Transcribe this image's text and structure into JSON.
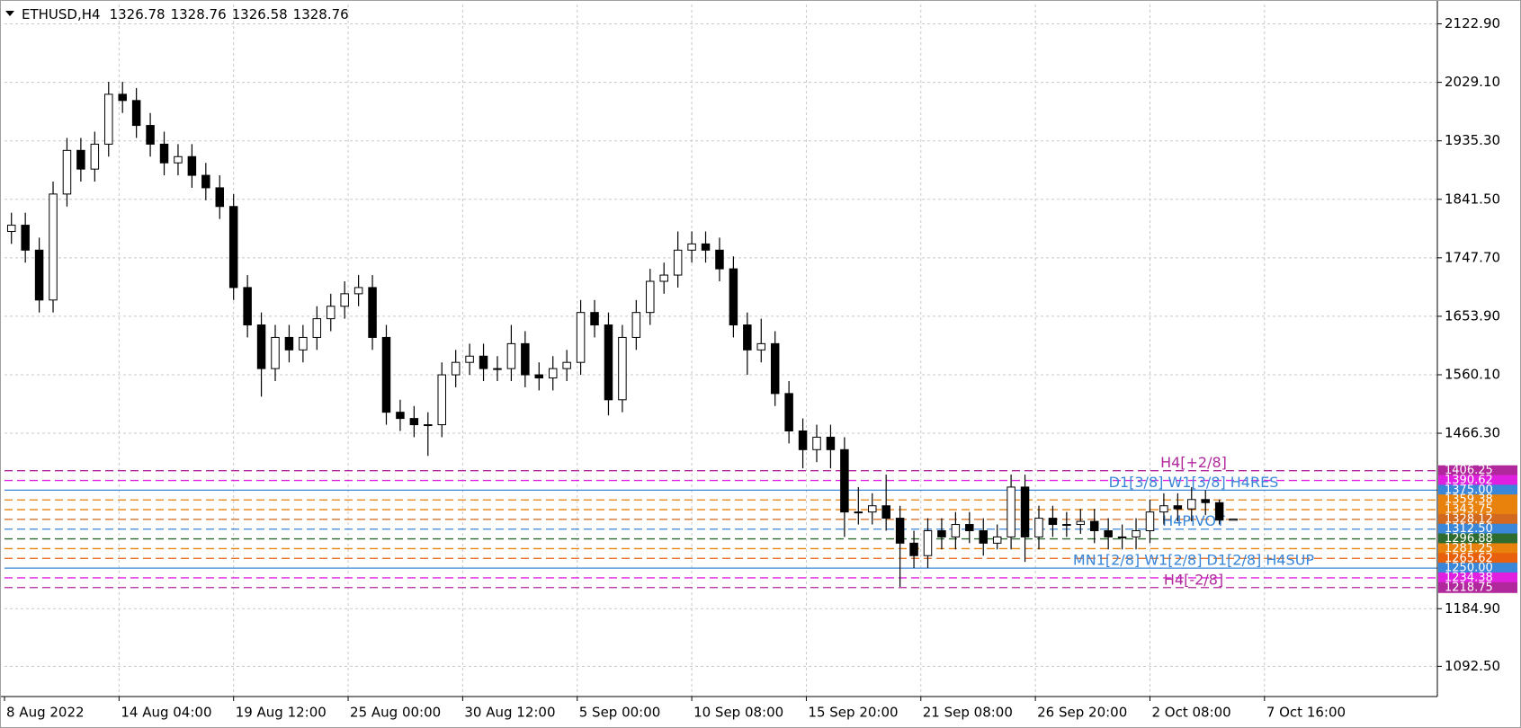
{
  "chart_data": {
    "type": "candlestick",
    "title": "ETHUSD,H4",
    "open": [
      1790,
      1800,
      1760,
      1680,
      1850,
      1920,
      1890,
      1930,
      2010,
      2000,
      1960,
      1930,
      1900,
      1910,
      1880,
      1860,
      1830,
      1700,
      1640,
      1570,
      1620,
      1600,
      1620,
      1650,
      1670,
      1690,
      1700,
      1620,
      1500,
      1490,
      1480,
      1480,
      1560,
      1580,
      1590,
      1570,
      1570,
      1610,
      1560,
      1555,
      1570,
      1580,
      1660,
      1640,
      1520,
      1620,
      1660,
      1710,
      1720,
      1760,
      1770,
      1760,
      1730,
      1640,
      1600,
      1610,
      1530,
      1470,
      1440,
      1460,
      1440,
      1340,
      1340,
      1350,
      1330,
      1290,
      1270,
      1310,
      1300,
      1320,
      1310,
      1290,
      1300,
      1380,
      1300,
      1330,
      1320,
      1320,
      1325,
      1310,
      1300,
      1300,
      1310,
      1340,
      1350,
      1345,
      1360,
      1355,
      1326.78
    ],
    "high": [
      1820,
      1820,
      1780,
      1870,
      1940,
      1940,
      1950,
      2030,
      2030,
      2020,
      1980,
      1950,
      1930,
      1930,
      1900,
      1880,
      1850,
      1720,
      1660,
      1640,
      1640,
      1640,
      1670,
      1690,
      1710,
      1720,
      1720,
      1640,
      1520,
      1510,
      1500,
      1580,
      1600,
      1610,
      1610,
      1590,
      1640,
      1630,
      1580,
      1590,
      1600,
      1680,
      1680,
      1660,
      1640,
      1680,
      1730,
      1740,
      1790,
      1790,
      1790,
      1780,
      1750,
      1660,
      1650,
      1630,
      1550,
      1490,
      1480,
      1480,
      1460,
      1380,
      1370,
      1400,
      1350,
      1310,
      1330,
      1330,
      1340,
      1340,
      1330,
      1320,
      1400,
      1400,
      1350,
      1350,
      1340,
      1345,
      1345,
      1330,
      1320,
      1330,
      1360,
      1370,
      1370,
      1380,
      1375,
      1360,
      1328.76
    ],
    "low": [
      1770,
      1740,
      1660,
      1660,
      1830,
      1870,
      1870,
      1910,
      1980,
      1940,
      1910,
      1880,
      1880,
      1860,
      1840,
      1810,
      1680,
      1620,
      1525,
      1550,
      1580,
      1580,
      1600,
      1630,
      1650,
      1670,
      1600,
      1480,
      1470,
      1460,
      1430,
      1460,
      1540,
      1560,
      1550,
      1550,
      1550,
      1540,
      1535,
      1535,
      1550,
      1560,
      1620,
      1495,
      1500,
      1600,
      1640,
      1690,
      1700,
      1740,
      1740,
      1710,
      1620,
      1560,
      1580,
      1510,
      1450,
      1410,
      1420,
      1410,
      1300,
      1320,
      1320,
      1310,
      1220,
      1250,
      1250,
      1280,
      1280,
      1290,
      1270,
      1280,
      1280,
      1260,
      1280,
      1300,
      1300,
      1305,
      1290,
      1280,
      1280,
      1280,
      1290,
      1320,
      1325,
      1325,
      1335,
      1320,
      1326.58
    ],
    "close": [
      1800,
      1760,
      1680,
      1850,
      1920,
      1890,
      1930,
      2010,
      2000,
      1960,
      1930,
      1900,
      1910,
      1880,
      1860,
      1830,
      1700,
      1640,
      1570,
      1620,
      1600,
      1620,
      1650,
      1670,
      1690,
      1700,
      1620,
      1500,
      1490,
      1480,
      1480,
      1560,
      1580,
      1590,
      1570,
      1570,
      1610,
      1560,
      1555,
      1570,
      1580,
      1660,
      1640,
      1520,
      1620,
      1660,
      1710,
      1720,
      1760,
      1770,
      1760,
      1730,
      1640,
      1600,
      1610,
      1530,
      1470,
      1440,
      1460,
      1440,
      1340,
      1340,
      1350,
      1330,
      1290,
      1270,
      1310,
      1300,
      1320,
      1310,
      1290,
      1300,
      1380,
      1300,
      1330,
      1320,
      1320,
      1325,
      1310,
      1300,
      1300,
      1310,
      1340,
      1350,
      1345,
      1360,
      1355,
      1327,
      1328.76
    ],
    "xlim": [
      -0.5,
      102.7
    ],
    "xticks": [
      {
        "value": -0.5,
        "label": "8 Aug 2022"
      },
      {
        "value": 7.75,
        "label": "14 Aug 04:00"
      },
      {
        "value": 16,
        "label": "19 Aug 12:00"
      },
      {
        "value": 24.25,
        "label": "25 Aug 00:00"
      },
      {
        "value": 32.5,
        "label": "30 Aug 12:00"
      },
      {
        "value": 40.75,
        "label": "5 Sep 00:00"
      },
      {
        "value": 49,
        "label": "10 Sep 08:00"
      },
      {
        "value": 57.25,
        "label": "15 Sep 20:00"
      },
      {
        "value": 65.5,
        "label": "21 Sep 08:00"
      },
      {
        "value": 73.75,
        "label": "26 Sep 20:00"
      },
      {
        "value": 82,
        "label": "2 Oct 08:00"
      },
      {
        "value": 90.25,
        "label": "7 Oct 16:00"
      }
    ],
    "ylim": [
      1044,
      2154
    ],
    "yticks": [
      {
        "value": 2122.9,
        "label": "2122.90"
      },
      {
        "value": 2029.1,
        "label": "2029.10"
      },
      {
        "value": 1935.3,
        "label": "1935.30"
      },
      {
        "value": 1841.5,
        "label": "1841.50"
      },
      {
        "value": 1747.7,
        "label": "1747.70"
      },
      {
        "value": 1653.9,
        "label": "1653.90"
      },
      {
        "value": 1560.1,
        "label": "1560.10"
      },
      {
        "value": 1466.3,
        "label": "1466.30"
      },
      {
        "value": 1184.9,
        "label": "1184.90"
      },
      {
        "value": 1092.5,
        "label": "1092.50"
      }
    ],
    "grid": true,
    "candle_color": "#000000",
    "levels": [
      {
        "value": 1406.25,
        "color": "#b0289c",
        "name": "H4[+2/8]"
      },
      {
        "value": 1390.62,
        "color": "#e020e0"
      },
      {
        "value": 1375,
        "label": "1375.00",
        "color": "#3a86d8",
        "solid": true,
        "name": "D1[3/8] W1[3/8] H4RES"
      },
      {
        "value": 1359.38,
        "color": "#e8820c"
      },
      {
        "value": 1343.75,
        "color": "#e8820c"
      },
      {
        "value": 1328.12,
        "color": "#d2691e"
      },
      {
        "value": 1312.5,
        "label": "1312.50",
        "color": "#3a86d8",
        "name": "H4PIVOT"
      },
      {
        "value": 1296.88,
        "color": "#2e6b2e"
      },
      {
        "value": 1281.25,
        "color": "#e8820c"
      },
      {
        "value": 1265.62,
        "color": "#e8600c"
      },
      {
        "value": 1250,
        "label": "1250.00",
        "color": "#3a86d8",
        "solid": true,
        "name": "MN1[2/8] W1[2/8] D1[2/8] H4SUP"
      },
      {
        "value": 1234.38,
        "color": "#e020e0"
      },
      {
        "value": 1218.75,
        "color": "#b0289c",
        "name": "H4[-2/8]"
      }
    ]
  }
}
